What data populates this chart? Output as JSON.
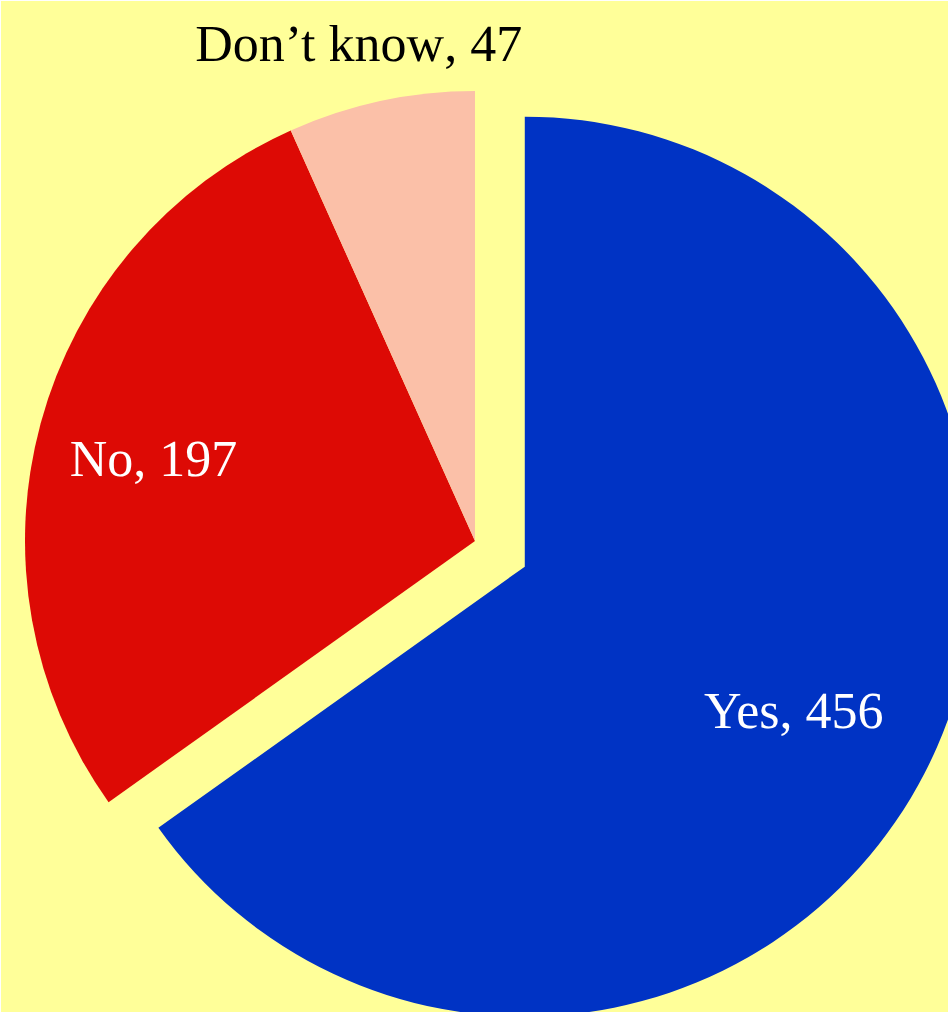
{
  "chart_data": {
    "type": "pie",
    "categories": [
      "Yes",
      "No",
      "Don’t know"
    ],
    "values": [
      456,
      197,
      47
    ],
    "colors": [
      "#0033c4",
      "#dd0a05",
      "#fbc0a8"
    ],
    "value_labels": [
      ", 456",
      ", 197",
      ", 47"
    ]
  }
}
